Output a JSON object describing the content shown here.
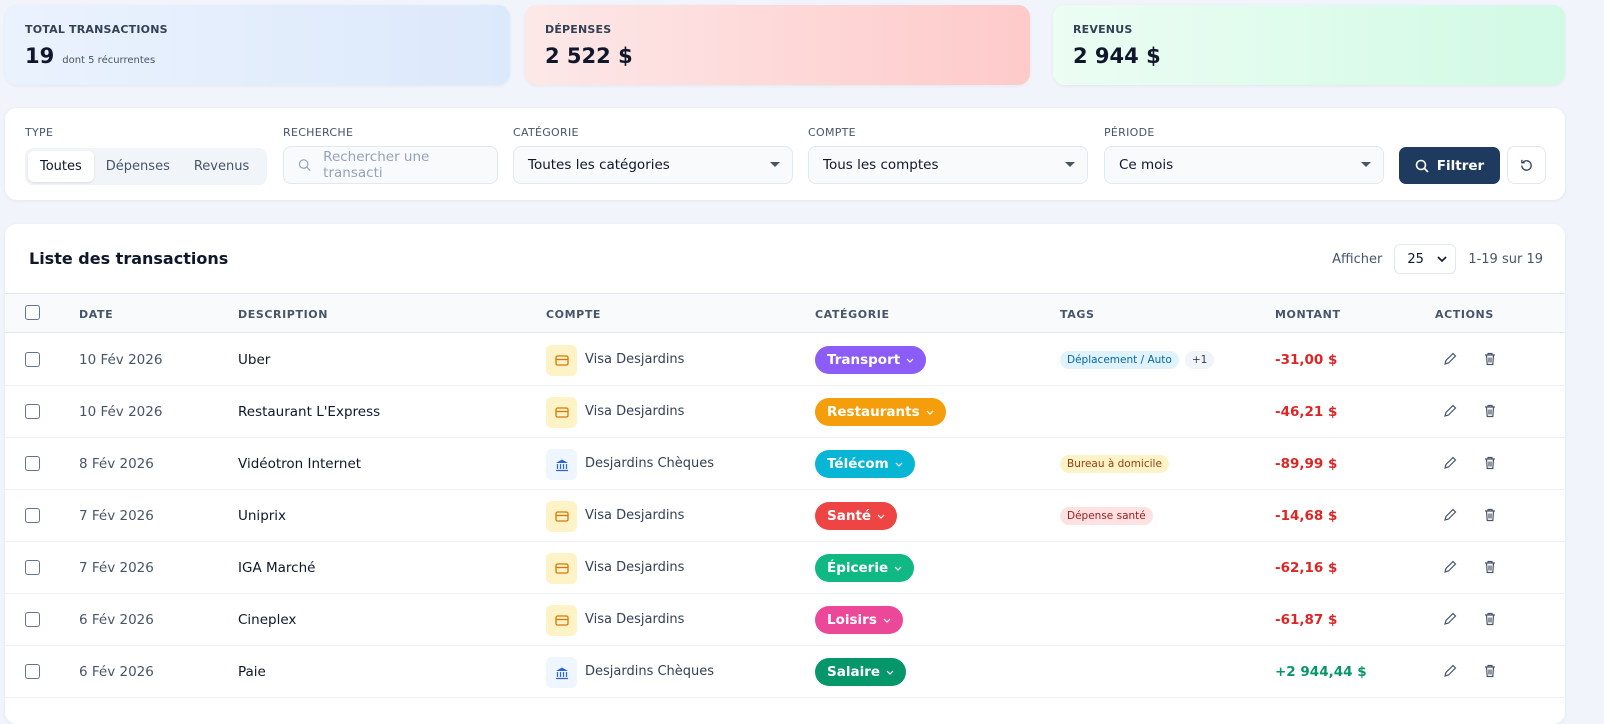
{
  "stats": [
    {
      "label": "TOTAL TRANSACTIONS",
      "value": "19",
      "sub": "dont 5 récurrentes"
    },
    {
      "label": "DÉPENSES",
      "value": "2 522 $"
    },
    {
      "label": "REVENUS",
      "value": "2 944 $"
    }
  ],
  "filters": {
    "type_label": "TYPE",
    "types": [
      "Toutes",
      "Dépenses",
      "Revenus"
    ],
    "type_selected": "Toutes",
    "search_label": "RECHERCHE",
    "search_placeholder": "Rechercher une transacti",
    "category_label": "CATÉGORIE",
    "category_value": "Toutes les catégories",
    "account_label": "COMPTE",
    "account_value": "Tous les comptes",
    "period_label": "PÉRIODE",
    "period_value": "Ce mois",
    "filter_button": "Filtrer"
  },
  "list": {
    "title": "Liste des transactions",
    "show_label": "Afficher",
    "page_size": "25",
    "range": "1-19 sur 19",
    "columns": [
      "DATE",
      "DESCRIPTION",
      "COMPTE",
      "CATÉGORIE",
      "TAGS",
      "MONTANT",
      "ACTIONS"
    ],
    "rows": [
      {
        "date": "10 Fév 2026",
        "desc": "Uber",
        "account": "Visa Desjardins",
        "account_icon": "credit-card",
        "category": "Transport",
        "cat_color": "#8b5cf6",
        "tags": [
          {
            "t": "Déplacement / Auto",
            "bg": "#e0f2fe",
            "fg": "#0369a1"
          },
          {
            "t": "+1",
            "bg": "#f1f5f9",
            "fg": "#334155"
          }
        ],
        "amount": "-31,00 $",
        "type": "expense"
      },
      {
        "date": "10 Fév 2026",
        "desc": "Restaurant L'Express",
        "account": "Visa Desjardins",
        "account_icon": "credit-card",
        "category": "Restaurants",
        "cat_color": "#f59e0b",
        "tags": [],
        "amount": "-46,21 $",
        "type": "expense"
      },
      {
        "date": "8 Fév 2026",
        "desc": "Vidéotron Internet",
        "account": "Desjardins Chèques",
        "account_icon": "bank",
        "category": "Télécom",
        "cat_color": "#06b6d4",
        "tags": [
          {
            "t": "Bureau à domicile",
            "bg": "#fef3c7",
            "fg": "#92400e"
          }
        ],
        "amount": "-89,99 $",
        "type": "expense"
      },
      {
        "date": "7 Fév 2026",
        "desc": "Uniprix",
        "account": "Visa Desjardins",
        "account_icon": "credit-card",
        "category": "Santé",
        "cat_color": "#ef4444",
        "tags": [
          {
            "t": "Dépense santé",
            "bg": "#fee2e2",
            "fg": "#991b1b"
          }
        ],
        "amount": "-14,68 $",
        "type": "expense"
      },
      {
        "date": "7 Fév 2026",
        "desc": "IGA Marché",
        "account": "Visa Desjardins",
        "account_icon": "credit-card",
        "category": "Épicerie",
        "cat_color": "#10b981",
        "tags": [],
        "amount": "-62,16 $",
        "type": "expense"
      },
      {
        "date": "6 Fév 2026",
        "desc": "Cineplex",
        "account": "Visa Desjardins",
        "account_icon": "credit-card",
        "category": "Loisirs",
        "cat_color": "#ec4899",
        "tags": [],
        "amount": "-61,87 $",
        "type": "expense"
      },
      {
        "date": "6 Fév 2026",
        "desc": "Paie",
        "account": "Desjardins Chèques",
        "account_icon": "bank",
        "category": "Salaire",
        "cat_color": "#059669",
        "tags": [],
        "amount": "+2 944,44 $",
        "type": "income"
      }
    ]
  },
  "colors": {
    "expense": "#dc2626",
    "income": "#059669",
    "primary": "#1e3a5f"
  }
}
